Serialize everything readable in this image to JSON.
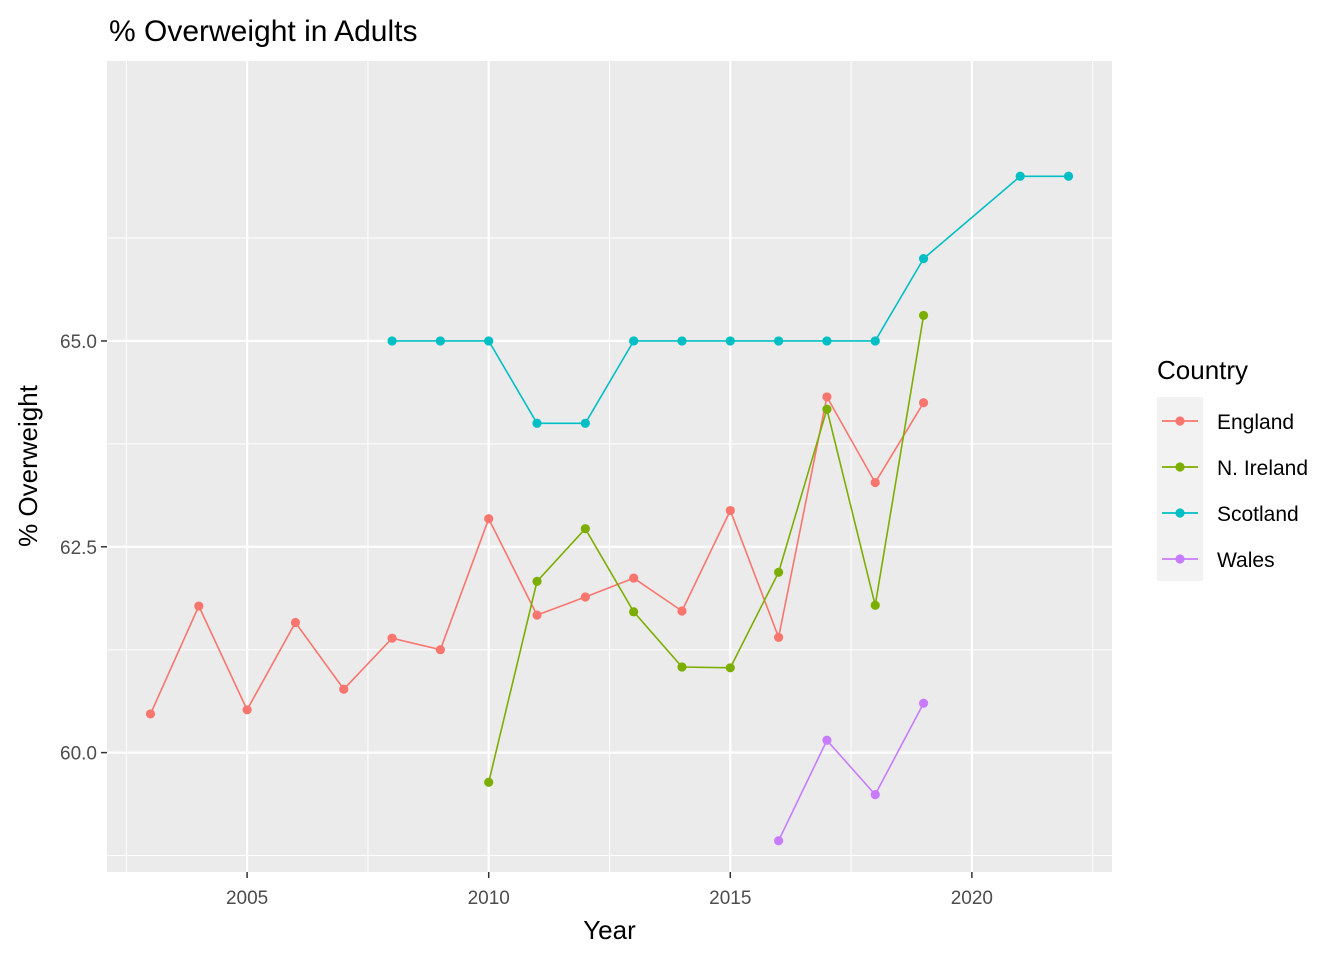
{
  "chart_data": {
    "type": "line",
    "title": "% Overweight in Adults",
    "xlabel": "Year",
    "ylabel": "% Overweight",
    "xlim": [
      2002.1,
      2022.9
    ],
    "ylim": [
      58.55,
      68.4
    ],
    "x_ticks": [
      2005,
      2010,
      2015,
      2020
    ],
    "x_tick_labels": [
      "2005",
      "2010",
      "2015",
      "2020"
    ],
    "y_ticks": [
      60.0,
      62.5,
      65.0
    ],
    "y_tick_labels": [
      "60.0",
      "62.5",
      "65.0"
    ],
    "grid": true,
    "legend": {
      "title": "Country",
      "position": "right"
    },
    "series": [
      {
        "name": "England",
        "color": "#F8766D",
        "x": [
          2003,
          2004,
          2005,
          2006,
          2007,
          2008,
          2009,
          2010,
          2011,
          2012,
          2013,
          2014,
          2015,
          2016,
          2017,
          2018,
          2019
        ],
        "y": [
          60.47,
          61.78,
          60.52,
          61.58,
          60.77,
          61.39,
          61.25,
          62.84,
          61.67,
          61.89,
          62.12,
          61.72,
          62.94,
          61.4,
          64.32,
          63.28,
          64.25
        ]
      },
      {
        "name": "N. Ireland",
        "color": "#7CAE00",
        "x": [
          2010,
          2011,
          2012,
          2013,
          2014,
          2015,
          2016,
          2017,
          2018,
          2019
        ],
        "y": [
          59.64,
          62.08,
          62.72,
          61.71,
          61.04,
          61.03,
          62.19,
          64.17,
          61.79,
          65.31
        ]
      },
      {
        "name": "Scotland",
        "color": "#00BFC4",
        "x": [
          2008,
          2009,
          2010,
          2011,
          2012,
          2013,
          2014,
          2015,
          2016,
          2017,
          2018,
          2019,
          2021,
          2022
        ],
        "y": [
          65,
          65,
          65,
          64,
          64,
          65,
          65,
          65,
          65,
          65,
          65,
          66,
          67,
          67
        ]
      },
      {
        "name": "Wales",
        "color": "#C77CFF",
        "x": [
          2016,
          2017,
          2018,
          2019
        ],
        "y": [
          58.93,
          60.15,
          59.49,
          60.6
        ]
      }
    ]
  }
}
